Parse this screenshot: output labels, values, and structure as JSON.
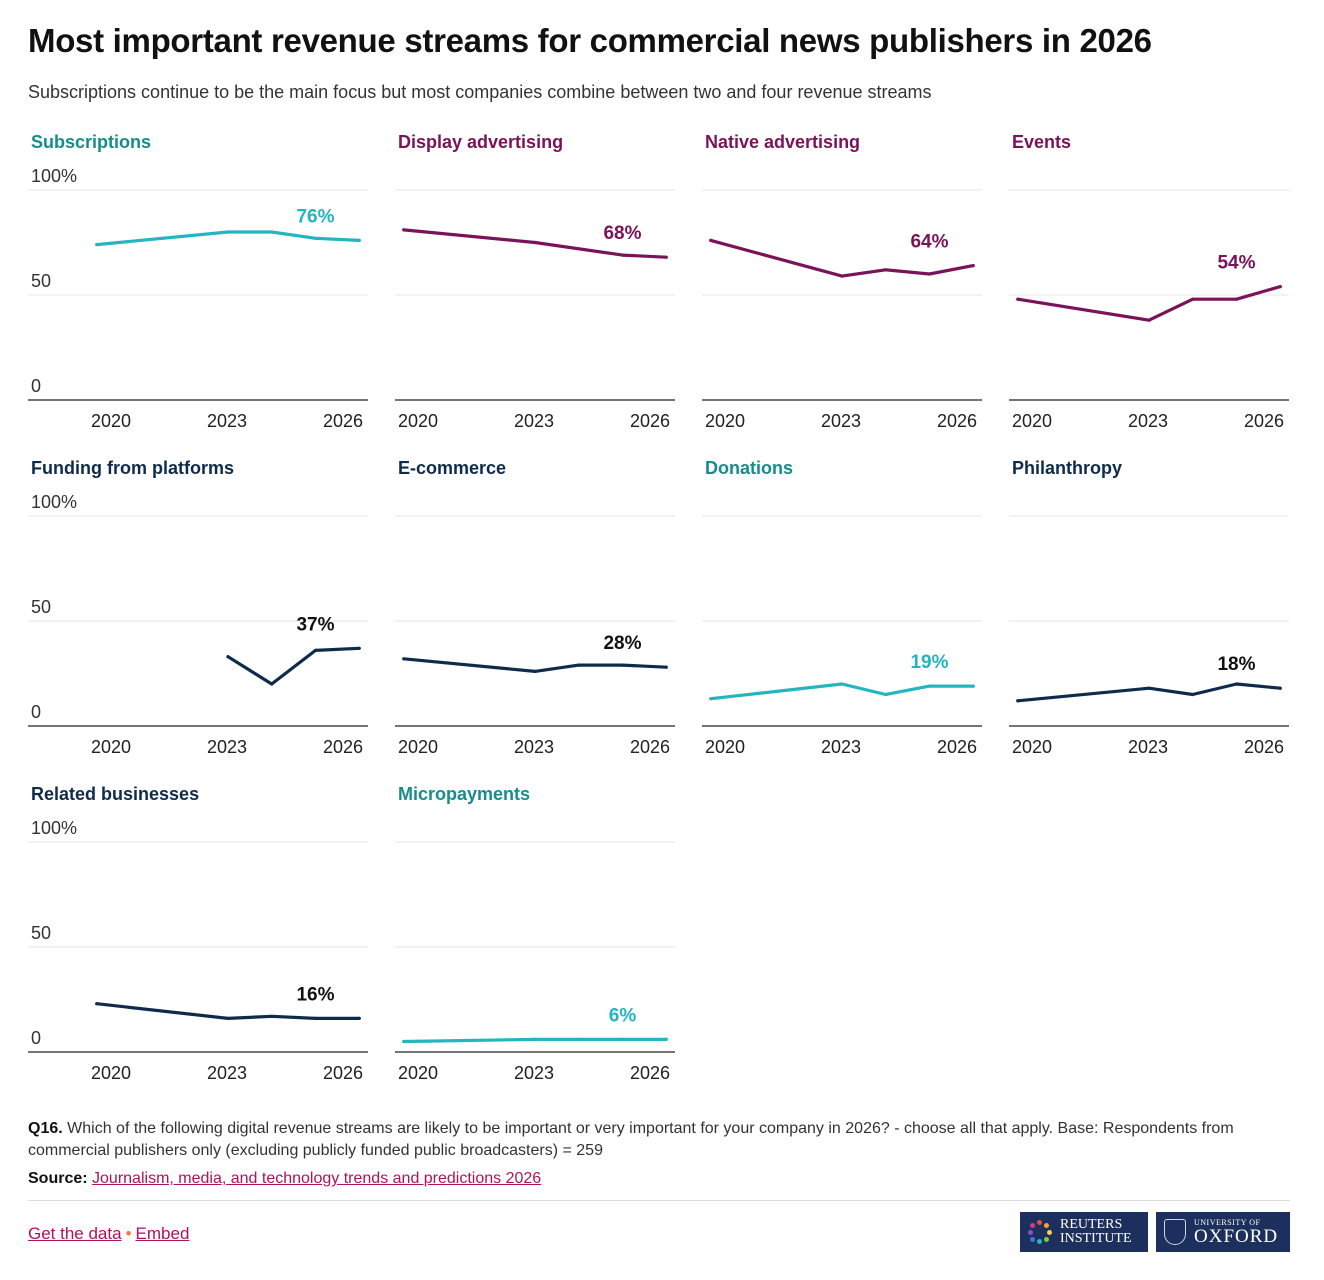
{
  "header": {
    "title": "Most important revenue streams for commercial news publishers in 2026",
    "subtitle": "Subscriptions continue to be the main focus but most companies combine between two and four revenue streams"
  },
  "colors": {
    "teal_title": "#168c8c",
    "teal_line": "#23b5c0",
    "magenta": "#7a1359",
    "navy": "#0f2b4c",
    "link": "#b0125d"
  },
  "chart_data": [
    {
      "type": "line",
      "title": "Subscriptions",
      "color": "teal",
      "x": [
        2020,
        2021,
        2022,
        2023,
        2024,
        2025,
        2026
      ],
      "series": [
        {
          "values": [
            74,
            null,
            null,
            80,
            80,
            77,
            76
          ]
        }
      ],
      "end_label": "76%",
      "ylim": [
        0,
        100
      ],
      "yticks": [
        "100%",
        "50",
        "0"
      ],
      "xticks": [
        "2020",
        "2023",
        "2026"
      ]
    },
    {
      "type": "line",
      "title": "Display advertising",
      "color": "magenta",
      "x": [
        2020,
        2021,
        2022,
        2023,
        2024,
        2025,
        2026
      ],
      "series": [
        {
          "values": [
            81,
            null,
            null,
            75,
            null,
            69,
            68
          ]
        }
      ],
      "end_label": "68%",
      "ylim": [
        0,
        100
      ],
      "yticks": [],
      "xticks": [
        "2020",
        "2023",
        "2026"
      ]
    },
    {
      "type": "line",
      "title": "Native advertising",
      "color": "magenta",
      "x": [
        2020,
        2021,
        2022,
        2023,
        2024,
        2025,
        2026
      ],
      "series": [
        {
          "values": [
            76,
            null,
            null,
            59,
            62,
            60,
            64
          ]
        }
      ],
      "end_label": "64%",
      "ylim": [
        0,
        100
      ],
      "yticks": [],
      "xticks": [
        "2020",
        "2023",
        "2026"
      ]
    },
    {
      "type": "line",
      "title": "Events",
      "color": "magenta",
      "x": [
        2020,
        2021,
        2022,
        2023,
        2024,
        2025,
        2026
      ],
      "series": [
        {
          "values": [
            48,
            null,
            null,
            38,
            48,
            48,
            54
          ]
        }
      ],
      "end_label": "54%",
      "ylim": [
        0,
        100
      ],
      "yticks": [],
      "xticks": [
        "2020",
        "2023",
        "2026"
      ]
    },
    {
      "type": "line",
      "title": "Funding from platforms",
      "color": "navy",
      "x": [
        2020,
        2021,
        2022,
        2023,
        2024,
        2025,
        2026
      ],
      "series": [
        {
          "values": [
            null,
            null,
            null,
            33,
            20,
            36,
            37
          ]
        }
      ],
      "end_label": "37%",
      "ylim": [
        0,
        100
      ],
      "yticks": [
        "100%",
        "50",
        "0"
      ],
      "xticks": [
        "2020",
        "2023",
        "2026"
      ]
    },
    {
      "type": "line",
      "title": "E-commerce",
      "color": "navy",
      "x": [
        2020,
        2021,
        2022,
        2023,
        2024,
        2025,
        2026
      ],
      "series": [
        {
          "values": [
            32,
            null,
            null,
            26,
            29,
            29,
            28
          ]
        }
      ],
      "end_label": "28%",
      "ylim": [
        0,
        100
      ],
      "yticks": [],
      "xticks": [
        "2020",
        "2023",
        "2026"
      ]
    },
    {
      "type": "line",
      "title": "Donations",
      "color": "teal",
      "x": [
        2020,
        2021,
        2022,
        2023,
        2024,
        2025,
        2026
      ],
      "series": [
        {
          "values": [
            13,
            null,
            null,
            20,
            15,
            19,
            19
          ]
        }
      ],
      "end_label": "19%",
      "ylim": [
        0,
        100
      ],
      "yticks": [],
      "xticks": [
        "2020",
        "2023",
        "2026"
      ]
    },
    {
      "type": "line",
      "title": "Philanthropy",
      "color": "navy",
      "x": [
        2020,
        2021,
        2022,
        2023,
        2024,
        2025,
        2026
      ],
      "series": [
        {
          "values": [
            12,
            null,
            null,
            18,
            15,
            20,
            18
          ]
        }
      ],
      "end_label": "18%",
      "ylim": [
        0,
        100
      ],
      "yticks": [],
      "xticks": [
        "2020",
        "2023",
        "2026"
      ]
    },
    {
      "type": "line",
      "title": "Related businesses",
      "color": "navy",
      "x": [
        2020,
        2021,
        2022,
        2023,
        2024,
        2025,
        2026
      ],
      "series": [
        {
          "values": [
            23,
            null,
            null,
            16,
            17,
            16,
            16
          ]
        }
      ],
      "end_label": "16%",
      "ylim": [
        0,
        100
      ],
      "yticks": [
        "100%",
        "50",
        "0"
      ],
      "xticks": [
        "2020",
        "2023",
        "2026"
      ]
    },
    {
      "type": "line",
      "title": "Micropayments",
      "color": "teal",
      "x": [
        2020,
        2021,
        2022,
        2023,
        2024,
        2025,
        2026
      ],
      "series": [
        {
          "values": [
            5,
            null,
            null,
            6,
            6,
            6,
            6
          ]
        }
      ],
      "end_label": "6%",
      "ylim": [
        0,
        100
      ],
      "yticks": [],
      "xticks": [
        "2020",
        "2023",
        "2026"
      ]
    }
  ],
  "footer": {
    "question_label": "Q16.",
    "question_text": "Which of the following digital revenue streams are likely to be important or very important for your company in 2026? - choose all that apply. Base: Respondents from commercial publishers only (excluding publicly funded public broadcasters) = 259",
    "source_label": "Source:",
    "source_link": "Journalism, media, and technology trends and predictions 2026",
    "get_data": "Get the data",
    "separator": "•",
    "embed": "Embed",
    "logo_reuters_line1": "REUTERS",
    "logo_reuters_line2": "INSTITUTE",
    "logo_oxford_line1": "UNIVERSITY OF",
    "logo_oxford_line2": "OXFORD"
  }
}
